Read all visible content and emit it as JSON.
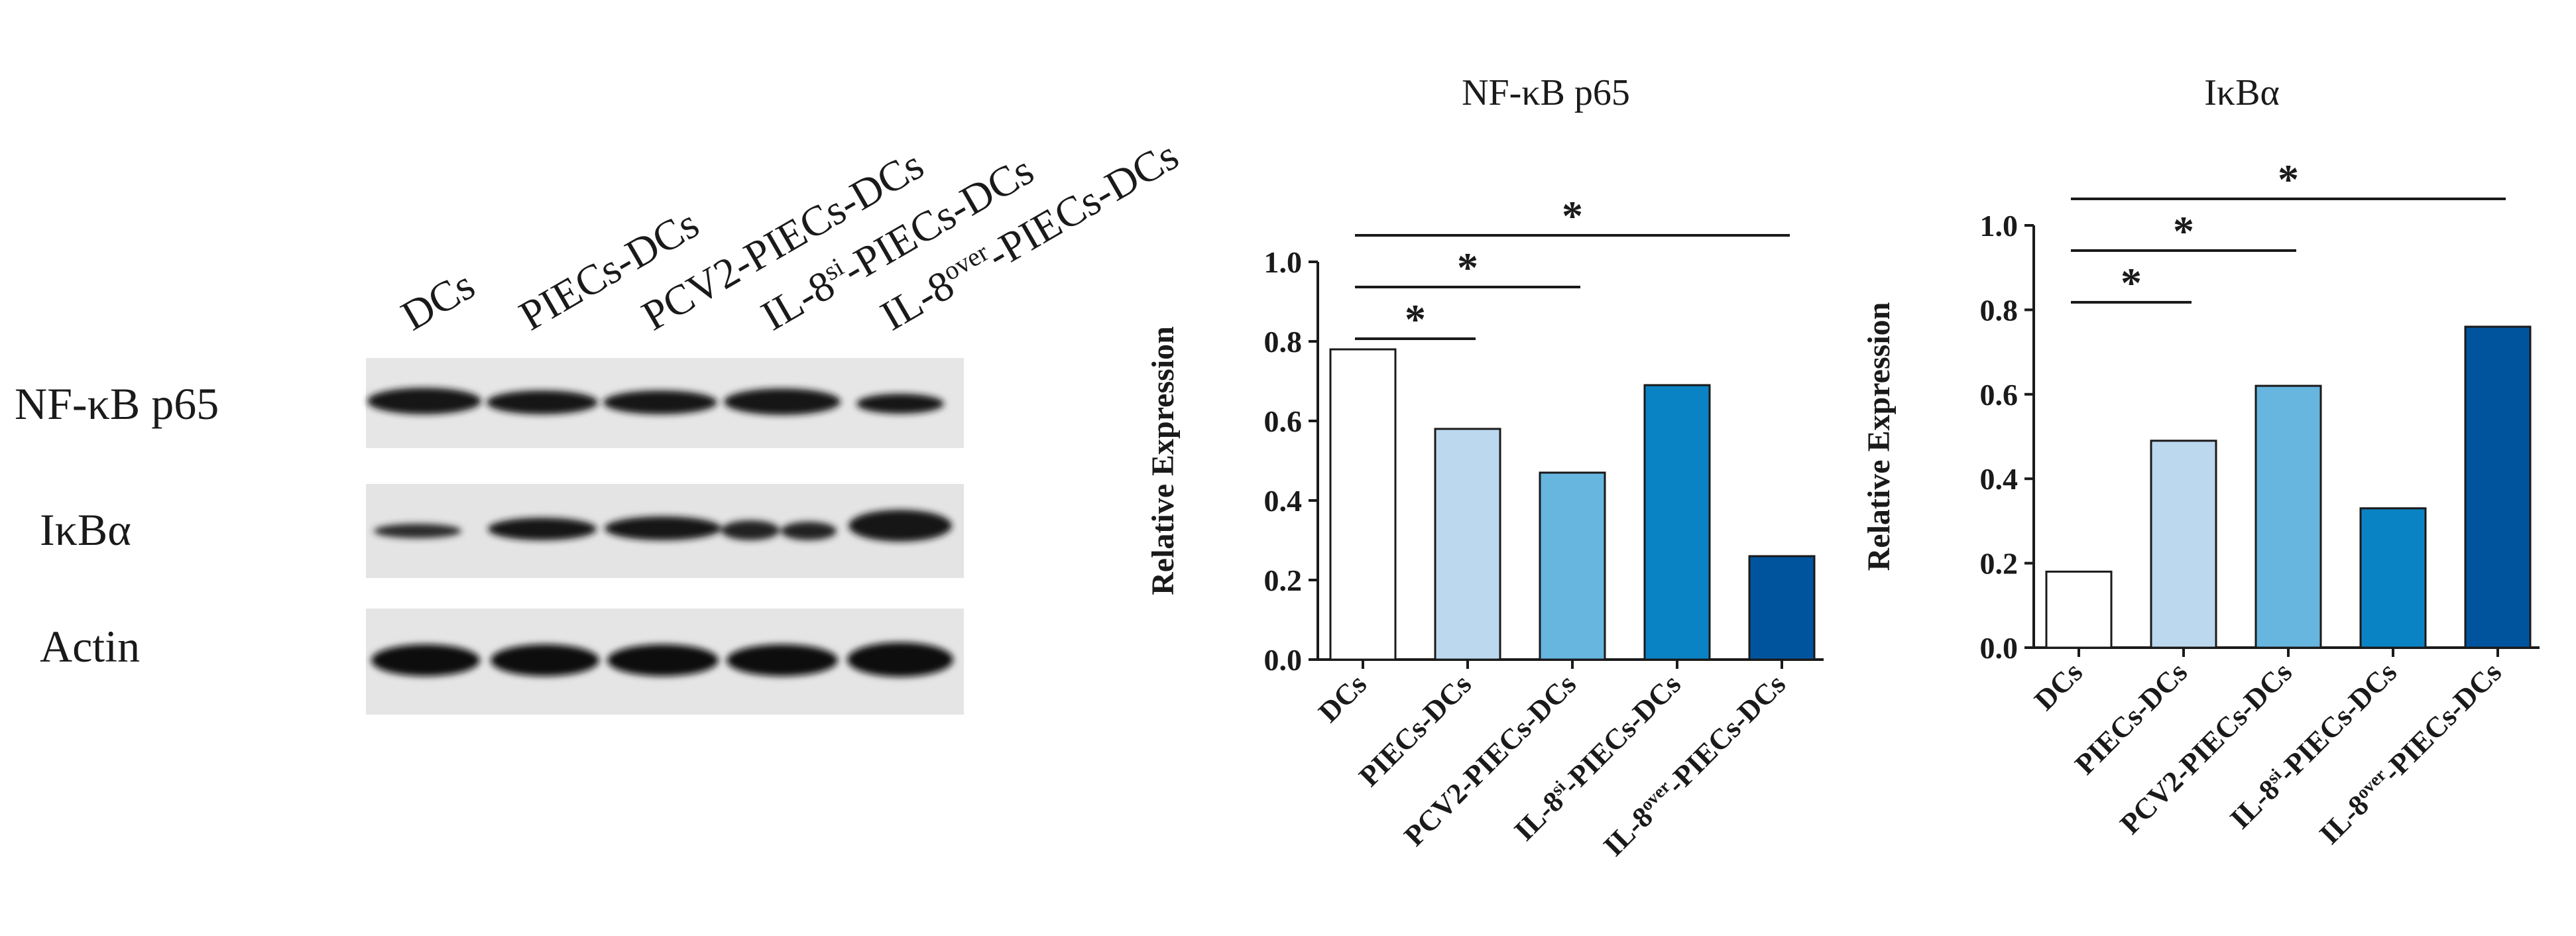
{
  "western_blot": {
    "lanes": [
      {
        "base": "DCs",
        "sup": "",
        "tail": ""
      },
      {
        "base": "PIECs-DCs",
        "sup": "",
        "tail": ""
      },
      {
        "base": "PCV2-PIECs-DCs",
        "sup": "",
        "tail": ""
      },
      {
        "base": "IL-8",
        "sup": "si",
        "tail": "-PIECs-DCs"
      },
      {
        "base": "IL-8",
        "sup": "over",
        "tail": "-PIECs-DCs"
      }
    ],
    "rows": [
      "NF-κB p65",
      "IκBα",
      "Actin"
    ]
  },
  "chart_data": [
    {
      "type": "bar",
      "title": "NF-κB p65",
      "xlabel": "",
      "ylabel": "Relative Expression",
      "ylim": [
        0,
        1.0
      ],
      "yticks": [
        "0.0",
        "0.2",
        "0.4",
        "0.6",
        "0.8",
        "1.0"
      ],
      "categories": [
        {
          "base": "DCs",
          "sup": "",
          "tail": ""
        },
        {
          "base": "PIECs-DCs",
          "sup": "",
          "tail": ""
        },
        {
          "base": "PCV2-PIECs-DCs",
          "sup": "",
          "tail": ""
        },
        {
          "base": "IL-8",
          "sup": "si",
          "tail": "-PIECs-DCs"
        },
        {
          "base": "IL-8",
          "sup": "over",
          "tail": "-PIECs-DCs"
        }
      ],
      "values": [
        0.78,
        0.58,
        0.47,
        0.69,
        0.26
      ],
      "colors": [
        "#ffffff",
        "#bcd8ef",
        "#66b6df",
        "#0a83c4",
        "#00549e"
      ],
      "significance": [
        {
          "from": 0,
          "to": 1,
          "label": "*"
        },
        {
          "from": 0,
          "to": 2,
          "label": "*"
        },
        {
          "from": 0,
          "to": 4,
          "label": "*"
        }
      ]
    },
    {
      "type": "bar",
      "title": "IκBα",
      "xlabel": "",
      "ylabel": "Relative Expression",
      "ylim": [
        0,
        1.0
      ],
      "yticks": [
        "0.0",
        "0.2",
        "0.4",
        "0.6",
        "0.8",
        "1.0"
      ],
      "categories": [
        {
          "base": "DCs",
          "sup": "",
          "tail": ""
        },
        {
          "base": "PIECs-DCs",
          "sup": "",
          "tail": ""
        },
        {
          "base": "PCV2-PIECs-DCs",
          "sup": "",
          "tail": ""
        },
        {
          "base": "IL-8",
          "sup": "si",
          "tail": "-PIECs-DCs"
        },
        {
          "base": "IL-8",
          "sup": "over",
          "tail": "-PIECs-DCs"
        }
      ],
      "values": [
        0.18,
        0.49,
        0.62,
        0.33,
        0.76
      ],
      "colors": [
        "#ffffff",
        "#bcd8ef",
        "#66b6df",
        "#0a83c4",
        "#00549e"
      ],
      "significance": [
        {
          "from": 0,
          "to": 1,
          "label": "*"
        },
        {
          "from": 0,
          "to": 2,
          "label": "*"
        },
        {
          "from": 0,
          "to": 4,
          "label": "*"
        }
      ]
    }
  ]
}
